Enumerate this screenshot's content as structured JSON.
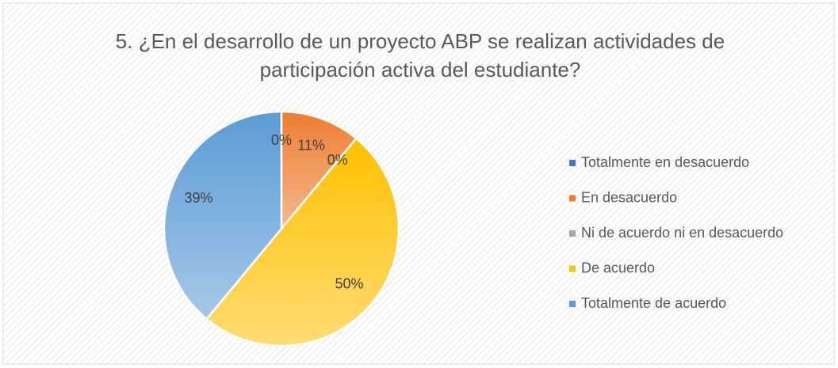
{
  "chart_data": {
    "type": "pie",
    "title": "5. ¿En el desarrollo de un proyecto ABP se realizan actividades de participación activa del estudiante?",
    "categories": [
      "Totalmente en desacuerdo",
      "En desacuerdo",
      "Ni de acuerdo ni en desacuerdo",
      "De acuerdo",
      "Totalmente de acuerdo"
    ],
    "values": [
      0,
      11,
      0,
      50,
      39
    ],
    "value_labels": [
      "0%",
      "11%",
      "0%",
      "50%",
      "39%"
    ],
    "colors": [
      "#4472c4",
      "#ed7d31",
      "#a5a5a5",
      "#ffc000",
      "#5b9bd5"
    ],
    "legend": "right"
  }
}
